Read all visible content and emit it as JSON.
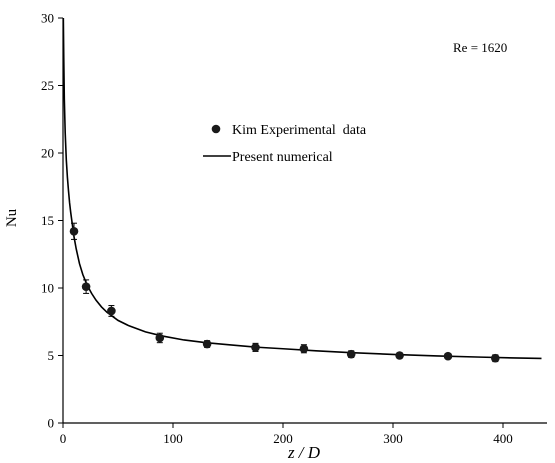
{
  "chart_data": {
    "type": "scatter",
    "title": "",
    "xlabel": "z / D",
    "ylabel": "Nu",
    "xlim": [
      0,
      440
    ],
    "ylim": [
      0,
      30
    ],
    "xticks": [
      0,
      100,
      200,
      300,
      400
    ],
    "yticks": [
      0,
      5,
      10,
      15,
      20,
      25,
      30
    ],
    "xtick_labels": [
      "0",
      "100",
      "200",
      "300",
      "400"
    ],
    "ytick_labels": [
      "0",
      "5",
      "10",
      "15",
      "20",
      "25",
      "30"
    ],
    "annotation": "Re = 1620",
    "grid": false,
    "legend_position": "upper-center",
    "series": [
      {
        "name": "Kim Experimental  data",
        "kind": "markers-with-errorbars",
        "marker": "filled-circle",
        "color": "#1a1a1a",
        "points": [
          {
            "x": 10,
            "y": 14.2,
            "err": 0.6
          },
          {
            "x": 21,
            "y": 10.1,
            "err": 0.5
          },
          {
            "x": 44,
            "y": 8.3,
            "err": 0.4
          },
          {
            "x": 88,
            "y": 6.3,
            "err": 0.35
          },
          {
            "x": 131,
            "y": 5.85,
            "err": 0.25
          },
          {
            "x": 175,
            "y": 5.6,
            "err": 0.3
          },
          {
            "x": 219,
            "y": 5.5,
            "err": 0.3
          },
          {
            "x": 262,
            "y": 5.1,
            "err": 0.25
          },
          {
            "x": 306,
            "y": 5.0,
            "err": 0.2
          },
          {
            "x": 350,
            "y": 4.95,
            "err": 0.2
          },
          {
            "x": 393,
            "y": 4.8,
            "err": 0.25
          }
        ]
      },
      {
        "name": "Present numerical",
        "kind": "line",
        "color": "#000000",
        "x": [
          0.3,
          0.7,
          1.2,
          2,
          3,
          4,
          5,
          6,
          7,
          8,
          10,
          12,
          15,
          18,
          22,
          26,
          30,
          35,
          40,
          50,
          60,
          75,
          90,
          110,
          130,
          150,
          175,
          200,
          230,
          260,
          300,
          340,
          380,
          410,
          435
        ],
        "y": [
          30,
          27,
          24,
          21.5,
          19.5,
          18.2,
          17.2,
          16.3,
          15.6,
          15,
          13.8,
          12.9,
          11.8,
          11,
          10.2,
          9.6,
          9.1,
          8.6,
          8.2,
          7.6,
          7.2,
          6.75,
          6.45,
          6.15,
          5.95,
          5.8,
          5.62,
          5.5,
          5.35,
          5.22,
          5.08,
          4.97,
          4.88,
          4.82,
          4.78
        ]
      }
    ]
  }
}
